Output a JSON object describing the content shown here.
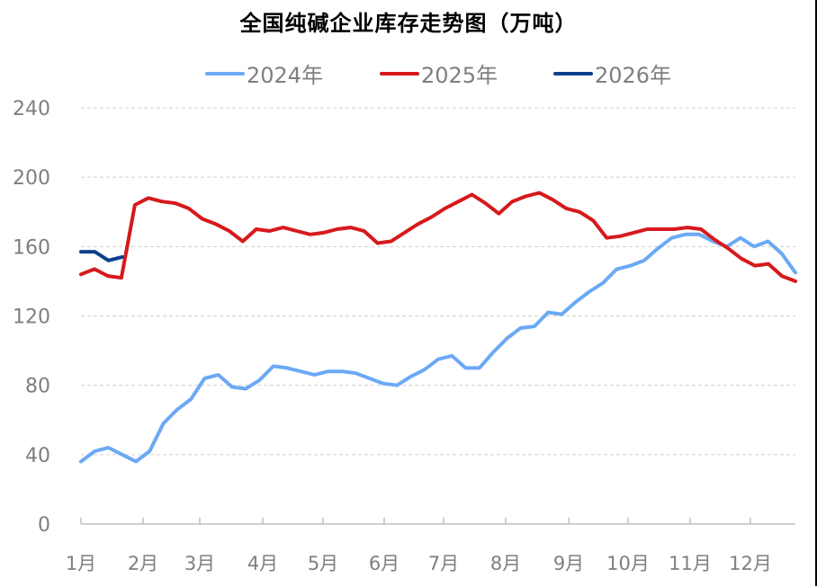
{
  "chart_data": {
    "type": "line",
    "title": "全国纯碱企业库存走势图（万吨）",
    "xlabel": "",
    "ylabel": "",
    "ylim": [
      0,
      240
    ],
    "yticks": [
      0,
      40,
      80,
      120,
      160,
      200,
      240
    ],
    "grid": "horizontal-dashed",
    "legend_position": "top",
    "categories": [
      "1月",
      "2月",
      "3月",
      "4月",
      "5月",
      "6月",
      "7月",
      "8月",
      "9月",
      "10月",
      "11月",
      "12月"
    ],
    "x_note": "weekly points across the year",
    "series": [
      {
        "name": "2024年",
        "color": "#6CA9F5",
        "values": [
          36,
          42,
          44,
          40,
          36,
          42,
          58,
          66,
          72,
          84,
          86,
          79,
          78,
          83,
          91,
          90,
          88,
          86,
          88,
          88,
          87,
          84,
          81,
          80,
          85,
          89,
          95,
          97,
          90,
          90,
          99,
          107,
          113,
          114,
          122,
          121,
          128,
          134,
          139,
          147,
          149,
          152,
          159,
          165,
          167,
          167,
          163,
          160,
          165,
          160,
          163,
          156,
          145
        ]
      },
      {
        "name": "2025年",
        "color": "#D7191C",
        "values": [
          144,
          147,
          143,
          142,
          184,
          188,
          186,
          185,
          182,
          176,
          173,
          169,
          163,
          170,
          169,
          171,
          169,
          167,
          168,
          170,
          171,
          169,
          162,
          163,
          168,
          173,
          177,
          182,
          186,
          190,
          185,
          179,
          186,
          189,
          191,
          187,
          182,
          180,
          175,
          165,
          166,
          168,
          170,
          170,
          170,
          171,
          170,
          164,
          159,
          153,
          149,
          150,
          143,
          140
        ]
      },
      {
        "name": "2026年",
        "color": "#0B3F8A",
        "values": [
          157,
          157,
          152,
          154
        ]
      }
    ]
  },
  "title": "全国纯碱企业库存走势图（万吨）",
  "legend": [
    {
      "label": "2024年",
      "color": "#6CA9F5"
    },
    {
      "label": "2025年",
      "color": "#D7191C"
    },
    {
      "label": "2026年",
      "color": "#0B3F8A"
    }
  ],
  "axis": {
    "y_labels": [
      "0",
      "40",
      "80",
      "120",
      "160",
      "200",
      "240"
    ],
    "x_labels": [
      "1月",
      "2月",
      "3月",
      "4月",
      "5月",
      "6月",
      "7月",
      "8月",
      "9月",
      "10月",
      "11月",
      "12月"
    ]
  }
}
